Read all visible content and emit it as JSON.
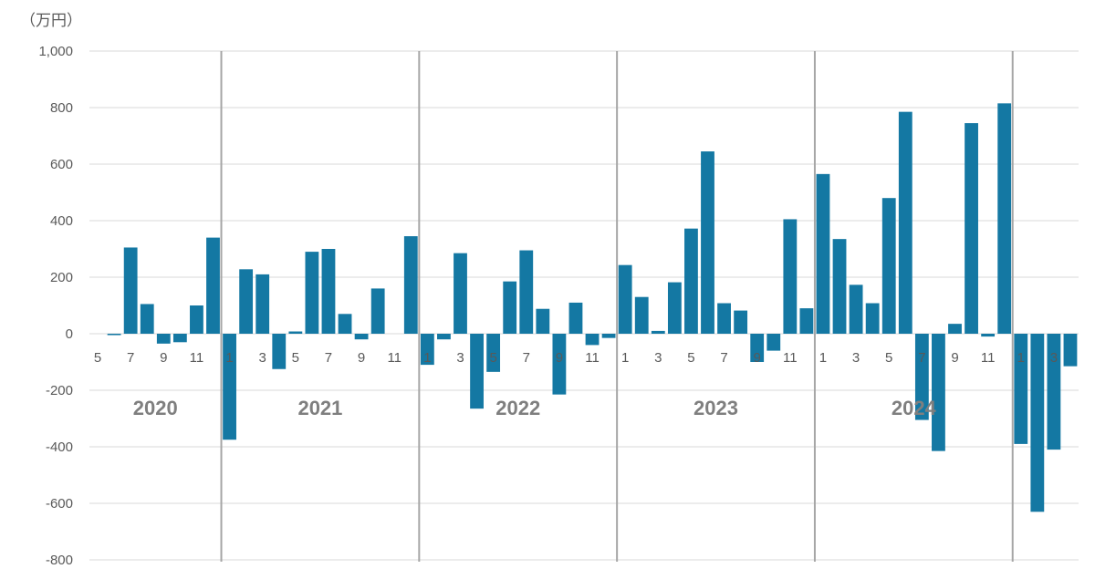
{
  "chart_data": {
    "type": "bar",
    "unit_label": "（万円）",
    "title": "",
    "xlabel": "",
    "ylabel": "",
    "ylim": [
      -800,
      1000
    ],
    "yticks": [
      1000,
      800,
      600,
      400,
      200,
      0,
      -200,
      -400,
      -600,
      -800
    ],
    "ytick_labels": [
      "1,000",
      "800",
      "600",
      "400",
      "200",
      "0",
      "-200",
      "-400",
      "-600",
      "-800"
    ],
    "grid": true,
    "bar_color": "#1478a3",
    "categories": [
      "5",
      "6",
      "7",
      "8",
      "9",
      "10",
      "11",
      "12",
      "1",
      "2",
      "3",
      "4",
      "5",
      "6",
      "7",
      "8",
      "9",
      "10",
      "11",
      "12",
      "1",
      "2",
      "3",
      "4",
      "5",
      "6",
      "7",
      "8",
      "9",
      "10",
      "11",
      "12",
      "1",
      "2",
      "3",
      "4",
      "5",
      "6",
      "7",
      "8",
      "9",
      "10",
      "11",
      "12",
      "1",
      "2",
      "3",
      "4",
      "5",
      "6",
      "7",
      "8",
      "9",
      "10",
      "11",
      "12",
      "1",
      "2",
      "3",
      "4"
    ],
    "tick_labels": [
      "5",
      "",
      "7",
      "",
      "9",
      "",
      "11",
      "",
      "1",
      "",
      "3",
      "",
      "5",
      "",
      "7",
      "",
      "9",
      "",
      "11",
      "",
      "1",
      "",
      "3",
      "",
      "5",
      "",
      "7",
      "",
      "9",
      "",
      "11",
      "",
      "1",
      "",
      "3",
      "",
      "5",
      "",
      "7",
      "",
      "9",
      "",
      "11",
      "",
      "1",
      "",
      "3",
      "",
      "5",
      "",
      "7",
      "",
      "9",
      "",
      "11",
      "",
      "1",
      "",
      "3",
      ""
    ],
    "values": [
      0,
      -5,
      305,
      105,
      -35,
      -30,
      100,
      340,
      -375,
      228,
      210,
      -125,
      8,
      290,
      300,
      70,
      -20,
      160,
      0,
      345,
      -110,
      -20,
      285,
      -265,
      -135,
      185,
      295,
      88,
      -215,
      110,
      -40,
      -15,
      243,
      130,
      10,
      182,
      372,
      645,
      108,
      82,
      -100,
      -60,
      405,
      90,
      565,
      335,
      173,
      108,
      480,
      785,
      -305,
      -415,
      35,
      745,
      -10,
      815,
      -390,
      -630,
      -410,
      -115
    ],
    "years": [
      {
        "label": "2020",
        "start": 0,
        "end": 8
      },
      {
        "label": "2021",
        "start": 8,
        "end": 20
      },
      {
        "label": "2022",
        "start": 20,
        "end": 32
      },
      {
        "label": "2023",
        "start": 32,
        "end": 44
      },
      {
        "label": "2024",
        "start": 44,
        "end": 56
      }
    ],
    "year_separators_after": [
      8,
      20,
      32,
      44,
      56
    ]
  }
}
